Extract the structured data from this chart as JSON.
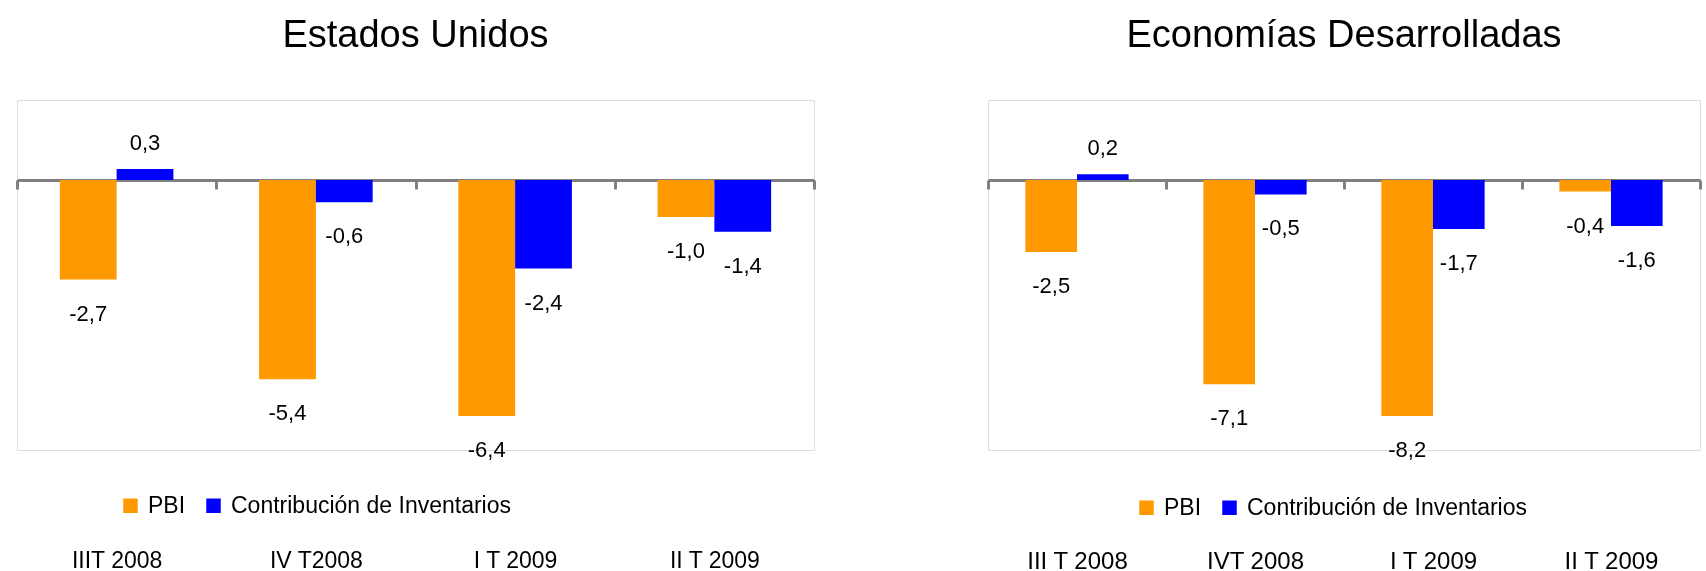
{
  "chart_data": [
    {
      "type": "bar",
      "title": "Estados Unidos",
      "categories": [
        "IIIT 2008",
        "IV T2008",
        "I T 2009",
        "II T 2009"
      ],
      "tick_labels": "x",
      "legend": "bottom",
      "series": [
        {
          "name": "PBI",
          "color": "#ff9900",
          "values": [
            -2.7,
            -5.4,
            -6.4,
            -1.0
          ],
          "value_labels": [
            "-2,7",
            "-5,4",
            "-6,4",
            "-1,0"
          ]
        },
        {
          "name": "Contribución de Inventarios",
          "color": "#0000ff",
          "values": [
            0.3,
            -0.6,
            -2.4,
            -1.4
          ],
          "value_labels": [
            "0,3",
            "-0,6",
            "-2,4",
            "-1,4"
          ]
        }
      ]
    },
    {
      "type": "bar",
      "title": "Economías Desarrolladas",
      "categories": [
        "III T 2008",
        "IVT 2008",
        "I T 2009",
        "II T 2009"
      ],
      "tick_labels": "x",
      "legend": "bottom",
      "series": [
        {
          "name": "PBI",
          "color": "#ff9900",
          "values": [
            -2.5,
            -7.1,
            -8.2,
            -0.4
          ],
          "value_labels": [
            "-2,5",
            "-7,1",
            "-8,2",
            "-0,4"
          ]
        },
        {
          "name": "Contribución de Inventarios",
          "color": "#0000ff",
          "values": [
            0.2,
            -0.5,
            -1.7,
            -1.6
          ],
          "value_labels": [
            "0,2",
            "-0,5",
            "-1,7",
            "-1,6"
          ]
        }
      ]
    }
  ]
}
